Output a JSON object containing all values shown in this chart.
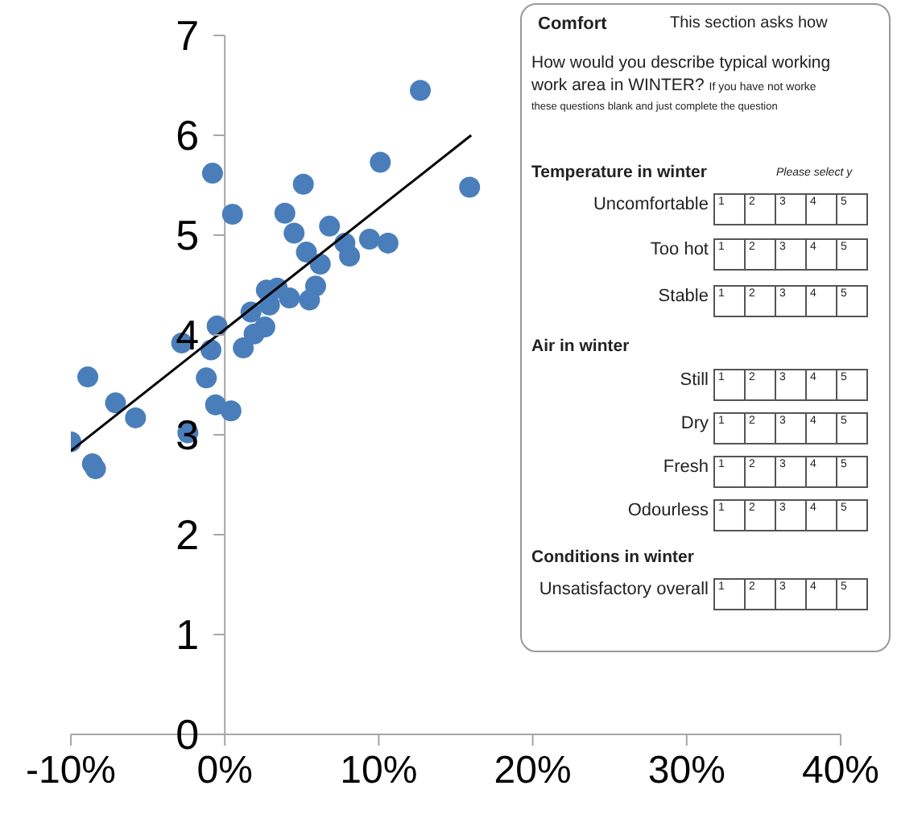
{
  "chart_data": {
    "type": "scatter",
    "xlim": [
      -10,
      40
    ],
    "xticks": [
      {
        "value": -10,
        "label": "-10%"
      },
      {
        "value": 0,
        "label": "0%"
      },
      {
        "value": 10,
        "label": "10%"
      },
      {
        "value": 20,
        "label": "20%"
      },
      {
        "value": 30,
        "label": "30%"
      },
      {
        "value": 40,
        "label": "40%"
      }
    ],
    "ylim": [
      0,
      7
    ],
    "yticks": [
      0,
      1,
      2,
      3,
      4,
      5,
      6,
      7
    ],
    "series": [
      {
        "marker": "circle",
        "color": "#4a7ebb",
        "x": [
          -10.0,
          -8.9,
          -8.6,
          -8.4,
          -7.1,
          -5.8,
          -2.8,
          -2.4,
          -1.2,
          -0.9,
          -0.8,
          -0.6,
          -0.5,
          0.4,
          0.5,
          1.2,
          1.7,
          1.9,
          2.6,
          2.7,
          2.9,
          3.4,
          3.9,
          4.2,
          4.5,
          5.1,
          5.3,
          5.5,
          5.9,
          6.2,
          6.8,
          7.8,
          8.1,
          9.4,
          10.1,
          10.6,
          12.7,
          15.9
        ],
        "values": [
          2.93,
          3.58,
          2.71,
          2.66,
          3.32,
          3.17,
          3.92,
          3.02,
          3.57,
          3.85,
          5.62,
          3.3,
          4.09,
          3.24,
          5.21,
          3.87,
          4.23,
          4.01,
          4.08,
          4.45,
          4.3,
          4.47,
          5.22,
          4.37,
          5.02,
          5.51,
          4.83,
          4.35,
          4.49,
          4.71,
          5.09,
          4.92,
          4.79,
          4.96,
          5.73,
          4.92,
          6.45,
          5.48
        ]
      },
      {
        "type": "line",
        "marker": "none",
        "color": "#000000",
        "x": [
          -10.0,
          16.0
        ],
        "values": [
          2.84,
          6.0
        ]
      }
    ],
    "annotations": [
      "Comfort",
      "This section asks how",
      "How would you describe typical working",
      "work area in WINTER?",
      "If you have not worke",
      "these questions blank and just complete the question",
      "Temperature in winter",
      "Please select y",
      "Uncomfortable",
      "Too hot",
      "Stable",
      "Air in winter",
      "Still",
      "Dry",
      "Fresh",
      "Odourless",
      "Conditions in winter",
      "Unsatisfactory overall",
      "1",
      "2",
      "3",
      "4",
      "5"
    ]
  }
}
